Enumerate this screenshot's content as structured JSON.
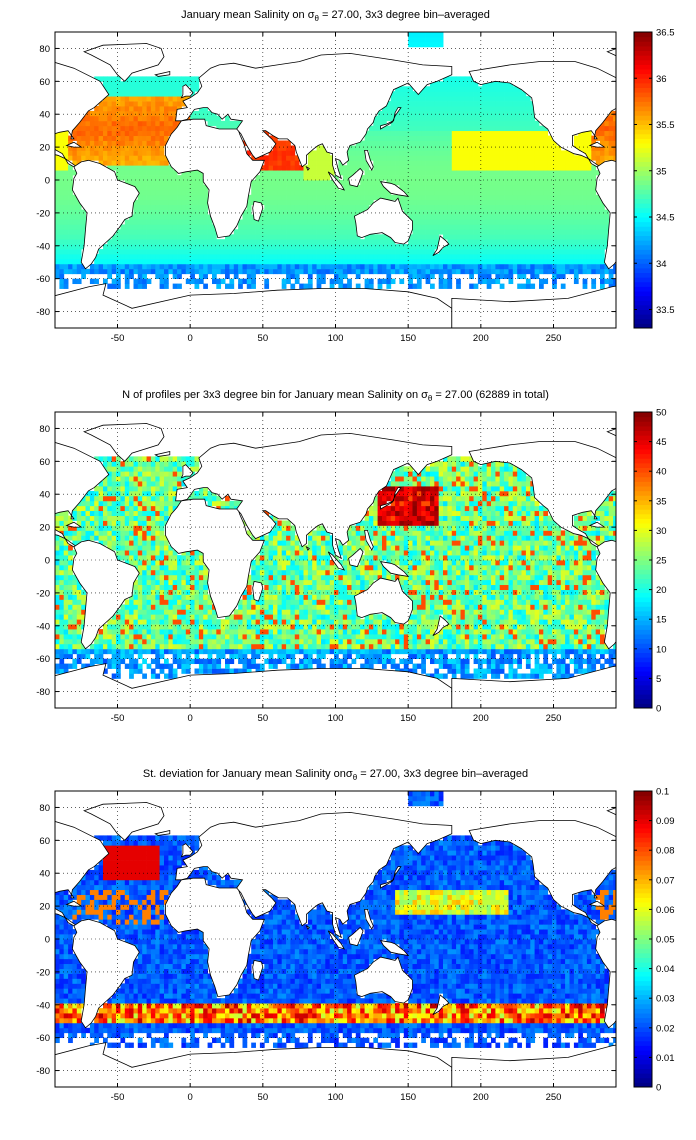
{
  "chart_data": [
    {
      "type": "heatmap",
      "title_parts": [
        "January mean Salinity on ",
        "σ",
        "θ",
        " = 27.00, 3x3 degree bin–averaged"
      ],
      "x_ticks": [
        "-50",
        "0",
        "50",
        "100",
        "150",
        "200",
        "250"
      ],
      "y_ticks": [
        "80",
        "60",
        "40",
        "20",
        "0",
        "-20",
        "-40",
        "-60",
        "-80"
      ],
      "xlim": [
        -93,
        293
      ],
      "ylim": [
        -90,
        90
      ],
      "colorbar_ticks": [
        "36.5",
        "36",
        "35.5",
        "35",
        "34.5",
        "34",
        "33.5"
      ],
      "clim": [
        33.3,
        36.5
      ],
      "grid": true,
      "colormap": "jet",
      "field": "salinity"
    },
    {
      "type": "heatmap",
      "title_parts": [
        "N of profiles per 3x3 degree bin for January mean Salinity on ",
        "σ",
        "θ",
        " = 27.00 (62889 in total)"
      ],
      "x_ticks": [
        "-50",
        "0",
        "50",
        "100",
        "150",
        "200",
        "250"
      ],
      "y_ticks": [
        "80",
        "60",
        "40",
        "20",
        "0",
        "-20",
        "-40",
        "-60",
        "-80"
      ],
      "xlim": [
        -93,
        293
      ],
      "ylim": [
        -90,
        90
      ],
      "colorbar_ticks": [
        "50",
        "45",
        "40",
        "35",
        "30",
        "25",
        "20",
        "15",
        "10",
        "5",
        "0"
      ],
      "clim": [
        0,
        50
      ],
      "grid": true,
      "colormap": "jet",
      "field": "count"
    },
    {
      "type": "heatmap",
      "title_parts": [
        "St. deviation for January mean Salinity on",
        "σ",
        "θ",
        " = 27.00, 3x3 degree bin–averaged"
      ],
      "x_ticks": [
        "-50",
        "0",
        "50",
        "100",
        "150",
        "200",
        "250"
      ],
      "y_ticks": [
        "80",
        "60",
        "40",
        "20",
        "0",
        "-20",
        "-40",
        "-60",
        "-80"
      ],
      "xlim": [
        -93,
        293
      ],
      "ylim": [
        -90,
        90
      ],
      "colorbar_ticks": [
        "0.1",
        "0.09",
        "0.08",
        "0.07",
        "0.06",
        "0.05",
        "0.04",
        "0.03",
        "0.02",
        "0.01",
        "0"
      ],
      "clim": [
        0,
        0.1
      ],
      "grid": true,
      "colormap": "jet",
      "field": "stdev"
    }
  ]
}
